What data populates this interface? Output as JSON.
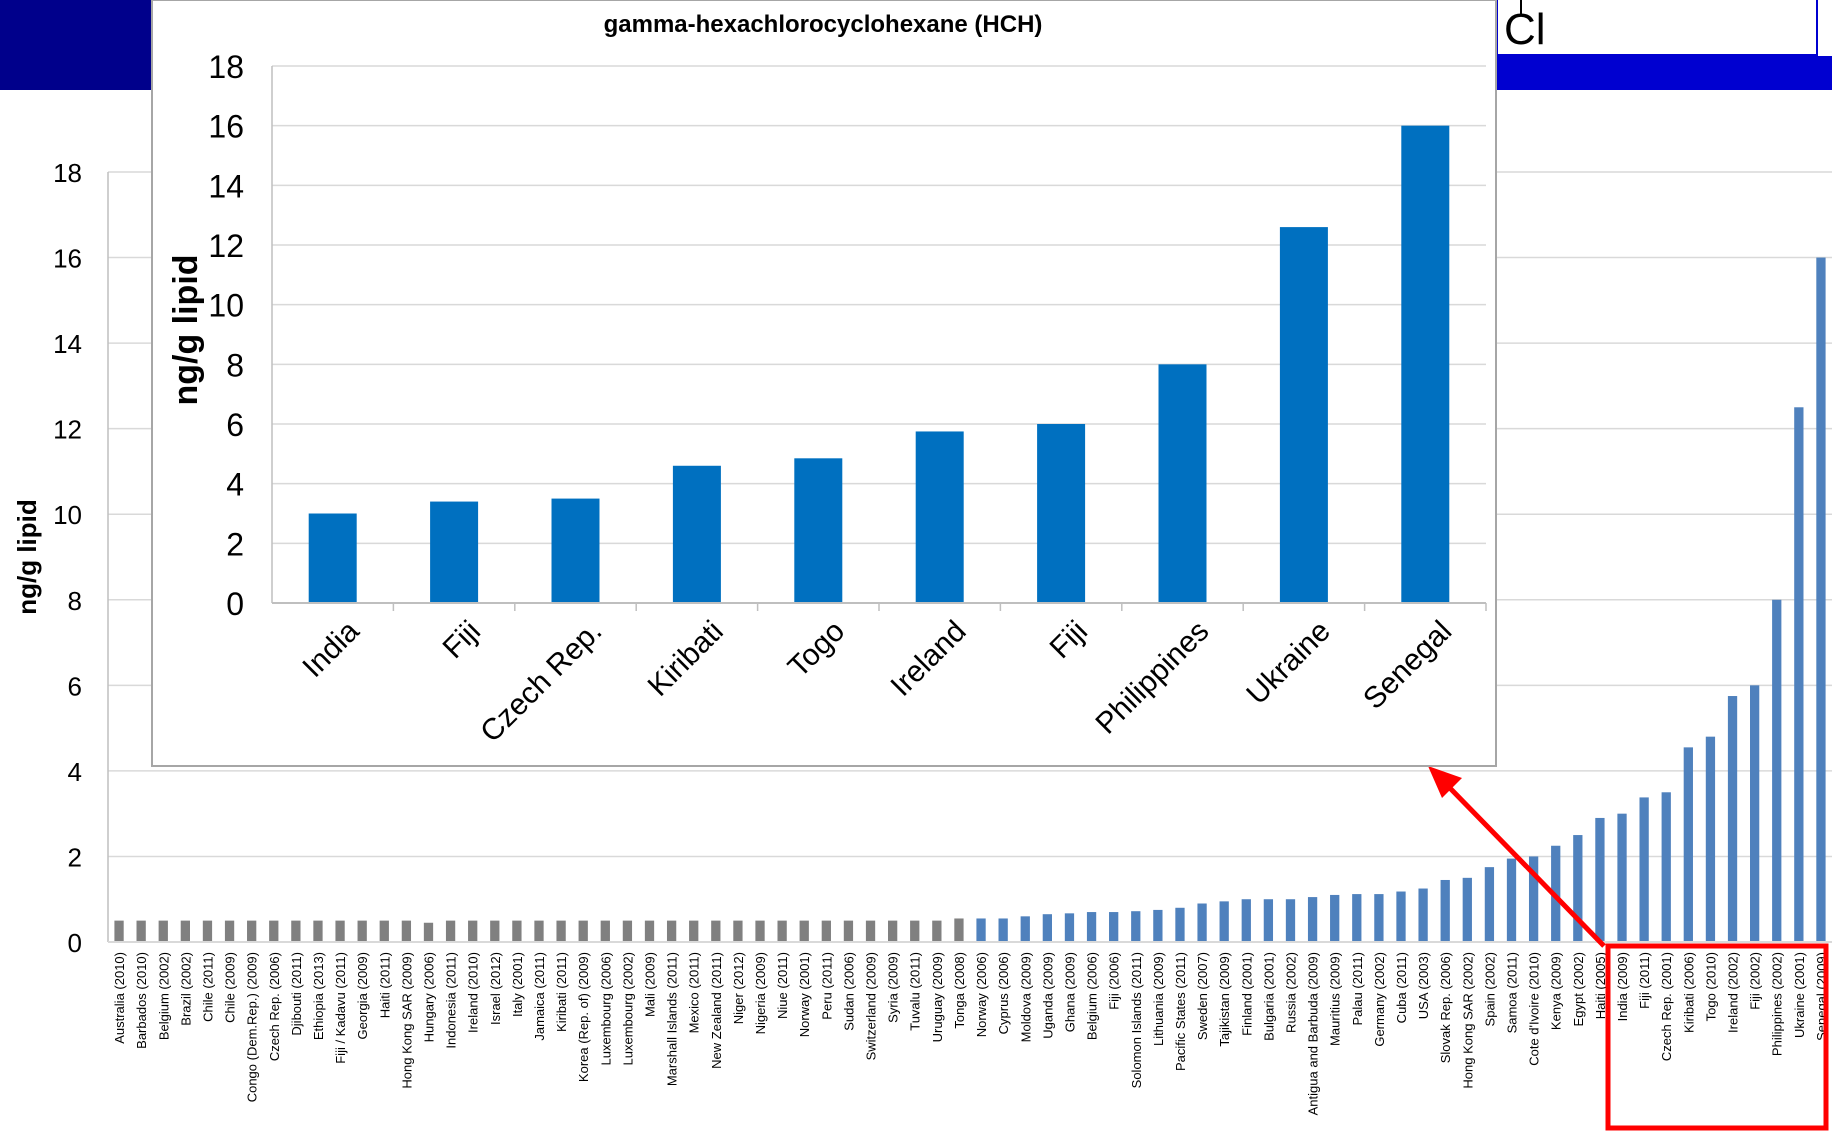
{
  "formula": {
    "atom": "Cl"
  },
  "chart_data": [
    {
      "type": "bar",
      "title": "",
      "ylabel": "ng/g lipid",
      "xlabel": "",
      "ylim": [
        0,
        18
      ],
      "yticks": [
        0,
        2,
        4,
        6,
        8,
        10,
        12,
        14,
        16,
        18
      ],
      "ytick_labels": [
        "0",
        "2",
        "4",
        "6",
        "8",
        "10",
        "12",
        "14",
        "16",
        "18"
      ],
      "grid": true,
      "colors": {
        "gray": "#808080",
        "blue": "#4f81bd",
        "gray_count": 39
      },
      "categories": [
        "Australia (2010)",
        "Barbados (2010)",
        "Belgium (2002)",
        "Brazil (2002)",
        "Chile (2011)",
        "Chile (2009)",
        "Congo (Dem.Rep.) (2009)",
        "Czech Rep. (2006)",
        "Djibouti (2011)",
        "Ethiopia (2013)",
        "Fiji / Kadavu (2011)",
        "Georgia (2009)",
        "Haiti (2011)",
        "Hong Kong SAR (2009)",
        "Hungary (2006)",
        "Indonesia (2011)",
        "Ireland (2010)",
        "Israel (2012)",
        "Italy (2001)",
        "Jamaica (2011)",
        "Kiribati (2011)",
        "Korea (Rep. of) (2009)",
        "Luxembourg (2006)",
        "Luxembourg (2002)",
        "Mali (2009)",
        "Marshall Islands (2011)",
        "Mexico (2011)",
        "New Zealand (2011)",
        "Niger (2012)",
        "Nigeria (2009)",
        "Niue (2011)",
        "Norway (2001)",
        "Peru (2011)",
        "Sudan (2006)",
        "Switzerland (2009)",
        "Syria (2009)",
        "Tuvalu (2011)",
        "Uruguay (2009)",
        "Tonga (2008)",
        "Norway (2006)",
        "Cyprus (2006)",
        "Moldova (2009)",
        "Uganda (2009)",
        "Ghana (2009)",
        "Belgium (2006)",
        "Fiji (2006)",
        "Solomon Islands (2011)",
        "Lithuania (2009)",
        "Pacific States (2011)",
        "Sweden (2007)",
        "Tajikistan (2009)",
        "Finland (2001)",
        "Bulgaria (2001)",
        "Russia (2002)",
        "Antigua and Barbuda (2009)",
        "Mauritius (2009)",
        "Palau (2011)",
        "Germany (2002)",
        "Cuba (2011)",
        "USA (2003)",
        "Slovak Rep. (2006)",
        "Hong Kong SAR (2002)",
        "Spain (2002)",
        "Samoa (2011)",
        "Cote d'Ivoire (2010)",
        "Kenya (2009)",
        "Egypt (2002)",
        "Haiti (2005)",
        "India (2009)",
        "Fiji (2011)",
        "Czech Rep. (2001)",
        "Kiribati (2006)",
        "Togo (2010)",
        "Ireland (2002)",
        "Fiji (2002)",
        "Philippines (2002)",
        "Ukraine (2001)",
        "Senegal (2009)"
      ],
      "values": [
        0.5,
        0.5,
        0.5,
        0.5,
        0.5,
        0.5,
        0.5,
        0.5,
        0.5,
        0.5,
        0.5,
        0.5,
        0.5,
        0.5,
        0.45,
        0.5,
        0.5,
        0.5,
        0.5,
        0.5,
        0.5,
        0.5,
        0.5,
        0.5,
        0.5,
        0.5,
        0.5,
        0.5,
        0.5,
        0.5,
        0.5,
        0.5,
        0.5,
        0.5,
        0.5,
        0.5,
        0.5,
        0.5,
        0.55,
        0.55,
        0.55,
        0.6,
        0.65,
        0.67,
        0.7,
        0.7,
        0.72,
        0.75,
        0.8,
        0.9,
        0.95,
        1.0,
        1.0,
        1.0,
        1.05,
        1.1,
        1.12,
        1.12,
        1.18,
        1.25,
        1.45,
        1.5,
        1.75,
        1.95,
        2.0,
        2.25,
        2.5,
        2.9,
        3.0,
        3.38,
        3.5,
        4.55,
        4.8,
        5.75,
        6.0,
        8.0,
        12.5,
        16.0
      ],
      "highlight": [
        "India (2009)",
        "Senegal (2009)"
      ]
    },
    {
      "type": "bar",
      "title": "gamma-hexachlorocyclohexane (HCH)",
      "ylabel": "ng/g lipid",
      "xlabel": "",
      "ylim": [
        0,
        18
      ],
      "yticks": [
        0,
        2,
        4,
        6,
        8,
        10,
        12,
        14,
        16,
        18
      ],
      "ytick_labels": [
        "0",
        "2",
        "4",
        "6",
        "8",
        "10",
        "12",
        "14",
        "16",
        "18"
      ],
      "grid": true,
      "color": "#0070c0",
      "categories": [
        "India",
        "Fiji",
        "Czech Rep.",
        "Kiribati",
        "Togo",
        "Ireland",
        "Fiji",
        "Philippines",
        "Ukraine",
        "Senegal"
      ],
      "values": [
        3.0,
        3.4,
        3.5,
        4.6,
        4.85,
        5.75,
        6.0,
        8.0,
        12.6,
        16.0
      ]
    }
  ]
}
